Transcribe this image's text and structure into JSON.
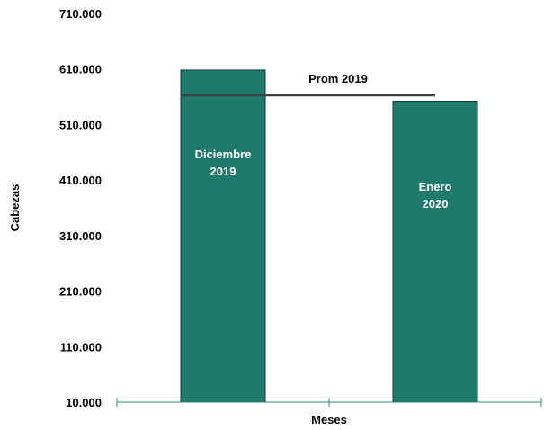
{
  "chart_data": {
    "type": "bar",
    "categories": [
      "Diciembre 2019",
      "Enero 2020"
    ],
    "bar_label_lines": [
      [
        "Diciembre",
        "2019"
      ],
      [
        "Enero",
        "2020"
      ]
    ],
    "values": [
      608000,
      552000
    ],
    "xlabel": "Meses",
    "ylabel": "Cabezas",
    "ylim": [
      10000,
      710000
    ],
    "yticks": [
      10000,
      110000,
      210000,
      310000,
      410000,
      510000,
      610000,
      710000
    ],
    "ytick_labels": [
      "10.000",
      "110.000",
      "210.000",
      "310.000",
      "410.000",
      "510.000",
      "610.000",
      "710.000"
    ],
    "reference_line": {
      "label": "Prom 2019",
      "value": 563000
    },
    "grid": false,
    "colors": {
      "bar": "#1e7b6c",
      "bar_edge": "#0d3b33",
      "axis": "#2e8b7a",
      "reference_line": "#404040"
    }
  }
}
